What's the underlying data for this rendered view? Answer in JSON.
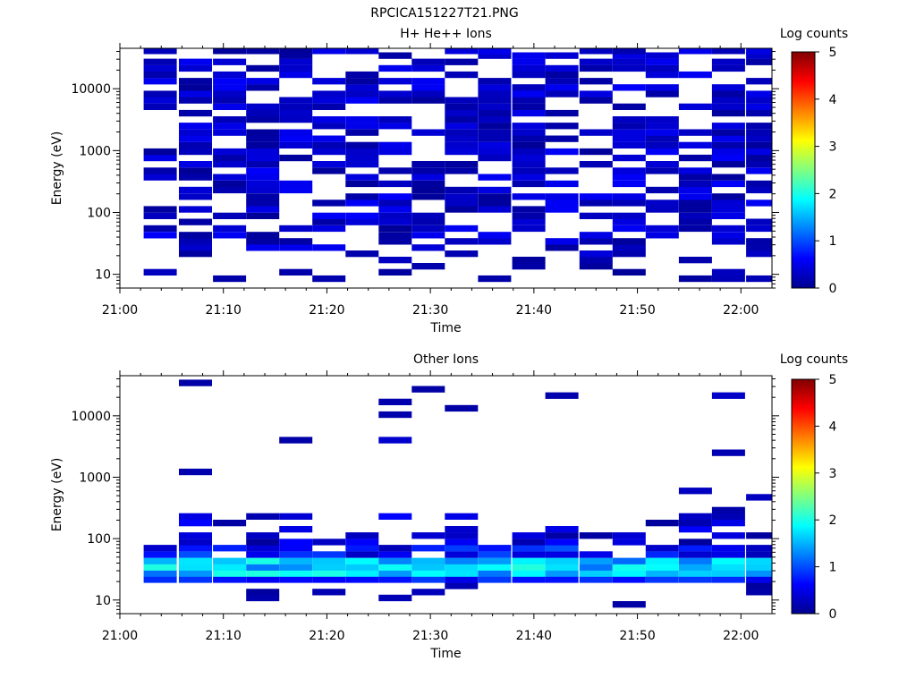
{
  "figure_title": "RPCICA151227T21.PNG",
  "chart_data": [
    {
      "type": "heatmap",
      "title": "H+ He++ Ions",
      "xlabel": "Time",
      "ylabel": "Energy (eV)",
      "x_tick_labels": [
        "21:00",
        "21:10",
        "21:20",
        "21:30",
        "21:40",
        "21:50",
        "22:00"
      ],
      "x_range_minutes": [
        0,
        63
      ],
      "y_scale": "log",
      "y_range": [
        6,
        45000
      ],
      "y_tick_values": [
        10,
        100,
        1000,
        10000
      ],
      "y_tick_labels": [
        "10",
        "100",
        "1000",
        "10000"
      ],
      "colorbar_label": "Log counts",
      "colorbar_range": [
        0,
        5
      ],
      "colorbar_tick_labels": [
        "0",
        "1",
        "2",
        "3",
        "4",
        "5"
      ],
      "colormap": "jet",
      "time_bins_start_min": [
        2.3,
        5.7,
        9.0,
        12.2,
        15.4,
        18.6,
        21.8,
        25.0,
        28.2,
        31.4,
        34.6,
        37.9,
        41.1,
        44.4,
        47.6,
        50.8,
        54.0,
        57.2,
        60.5
      ],
      "bin_width_min": 3.2,
      "energy_channels_eV": [
        8.5,
        10.8,
        13.5,
        17,
        21.5,
        27,
        34,
        43,
        55,
        70,
        88,
        112,
        142,
        180,
        230,
        290,
        370,
        470,
        600,
        760,
        960,
        1220,
        1550,
        1960,
        2500,
        3170,
        4020,
        5100,
        6480,
        8220,
        10430,
        13240,
        16800,
        21320,
        27050,
        34330,
        41000
      ],
      "cells_description": "sparse single-count detections (log counts ~0.1-0.6) in most channels above ~30 eV"
    },
    {
      "type": "heatmap",
      "title": "Other Ions",
      "xlabel": "Time",
      "ylabel": "Energy (eV)",
      "x_tick_labels": [
        "21:00",
        "21:10",
        "21:20",
        "21:30",
        "21:40",
        "21:50",
        "22:00"
      ],
      "x_range_minutes": [
        0,
        63
      ],
      "y_scale": "log",
      "y_range": [
        6,
        45000
      ],
      "y_tick_values": [
        10,
        100,
        1000,
        10000
      ],
      "y_tick_labels": [
        "10",
        "100",
        "1000",
        "10000"
      ],
      "colorbar_label": "Log counts",
      "colorbar_range": [
        0,
        5
      ],
      "colorbar_tick_labels": [
        "0",
        "1",
        "2",
        "3",
        "4",
        "5"
      ],
      "colormap": "jet",
      "cells_description": "band of enhanced counts (log counts ~1.2-2.0) between ~25 and ~45 eV; sparse detections above"
    }
  ]
}
